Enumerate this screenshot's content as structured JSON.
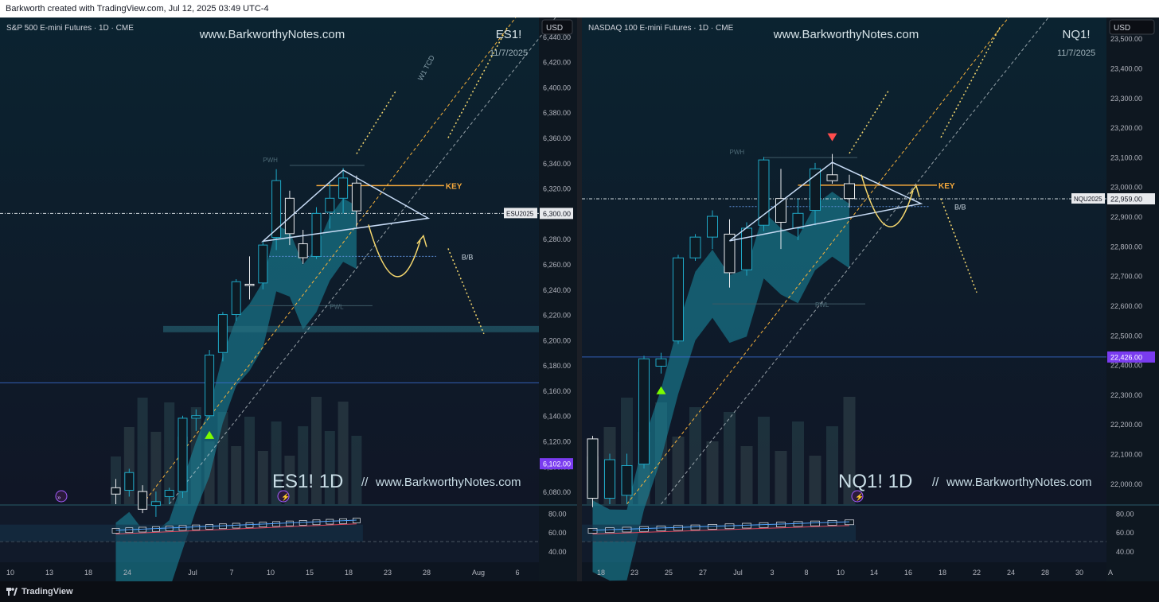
{
  "header": {
    "credit": "Barkworth created with TradingView.com, Jul 12, 2025 03:49 UTC-4"
  },
  "footer": {
    "brand": "TradingView"
  },
  "colors": {
    "accent": "#26c6da",
    "bull": "#1fa8c6",
    "key": "#f6a93b",
    "projection": "#f5d76e",
    "triangle": "#c7dbf5",
    "purple": "#7a3cf0"
  },
  "chart_data": [
    {
      "type": "candlestick",
      "title": "S&P 500 E-mini Futures · 1D · CME",
      "watermark": "www.BarkworthyNotes.com",
      "symbol": "ES1!",
      "date": "11/7/2025",
      "currency": "USD",
      "bottom_watermark_symbol": "ES1! 1D",
      "bottom_watermark_sep": "//",
      "bottom_watermark_url": "www.BarkworthyNotes.com",
      "ylim": [
        6070,
        6455
      ],
      "yticks": [
        6080,
        6100,
        6120,
        6140,
        6160,
        6180,
        6200,
        6220,
        6240,
        6260,
        6280,
        6300,
        6320,
        6340,
        6360,
        6380,
        6400,
        6420,
        6440
      ],
      "ytick_labels": [
        "6,080.00",
        "6,100.00",
        "6,120.00",
        "6,140.00",
        "6,160.00",
        "6,180.00",
        "6,200.00",
        "6,220.00",
        "6,240.00",
        "6,260.00",
        "6,280.00",
        "6,300.00",
        "6,320.00",
        "6,340.00",
        "6,360.00",
        "6,380.00",
        "6,400.00",
        "6,420.00",
        "6,440.00"
      ],
      "xticks": [
        "10",
        "13",
        "18",
        "24",
        "Jul",
        "7",
        "10",
        "15",
        "18",
        "23",
        "28",
        "Aug",
        "6"
      ],
      "price_labels": [
        {
          "label": "ESU2025",
          "value_text": "6,300.00",
          "value": 6300
        },
        {
          "label": "",
          "value_text": "6,102.00",
          "value": 6102
        }
      ],
      "candles": [
        {
          "o": 6083,
          "h": 6090,
          "l": 6070,
          "c": 6078
        },
        {
          "o": 6081,
          "h": 6098,
          "l": 6076,
          "c": 6095
        },
        {
          "o": 6080,
          "h": 6085,
          "l": 6063,
          "c": 6066
        },
        {
          "o": 6069,
          "h": 6080,
          "l": 6060,
          "c": 6072
        },
        {
          "o": 6076,
          "h": 6083,
          "l": 6070,
          "c": 6081
        },
        {
          "o": 6080,
          "h": 6140,
          "l": 6075,
          "c": 6138
        },
        {
          "o": 6138,
          "h": 6145,
          "l": 6128,
          "c": 6140
        },
        {
          "o": 6140,
          "h": 6192,
          "l": 6138,
          "c": 6188
        },
        {
          "o": 6190,
          "h": 6222,
          "l": 6183,
          "c": 6220
        },
        {
          "o": 6220,
          "h": 6248,
          "l": 6215,
          "c": 6246
        },
        {
          "o": 6244,
          "h": 6266,
          "l": 6232,
          "c": 6243
        },
        {
          "o": 6245,
          "h": 6278,
          "l": 6240,
          "c": 6275
        },
        {
          "o": 6281,
          "h": 6335,
          "l": 6271,
          "c": 6326
        },
        {
          "o": 6312,
          "h": 6318,
          "l": 6275,
          "c": 6284
        },
        {
          "o": 6276,
          "h": 6287,
          "l": 6260,
          "c": 6265
        },
        {
          "o": 6266,
          "h": 6305,
          "l": 6264,
          "c": 6300
        },
        {
          "o": 6301,
          "h": 6324,
          "l": 6288,
          "c": 6312
        },
        {
          "o": 6312,
          "h": 6336,
          "l": 6300,
          "c": 6328
        },
        {
          "o": 6324,
          "h": 6330,
          "l": 6289,
          "c": 6302
        }
      ],
      "markers": [
        {
          "candle": 7,
          "type": "up-triangle"
        }
      ],
      "annotations": {
        "pwh": "PWH",
        "pwl": "PWL",
        "key": "KEY",
        "bb": "B/B",
        "channel": "W1 TCD"
      },
      "levels": {
        "key": 6322,
        "pwh": 6338,
        "pwl": 6227,
        "bb": 6266,
        "zone_top": 6211,
        "zone_bottom": 6206,
        "blue_line": 6166
      },
      "oscillator": {
        "yticks_text": [
          "80.00",
          "60.00",
          "40.00"
        ],
        "yticks": [
          80,
          60,
          40
        ],
        "ylim": [
          28,
          88
        ]
      }
    },
    {
      "type": "candlestick",
      "title": "NASDAQ 100 E-mini Futures · 1D · CME",
      "watermark": "www.BarkworthyNotes.com",
      "symbol": "NQ1!",
      "date": "11/7/2025",
      "currency": "USD",
      "bottom_watermark_symbol": "NQ1! 1D",
      "bottom_watermark_sep": "//",
      "bottom_watermark_url": "www.BarkworthyNotes.com",
      "ylim": [
        21930,
        23570
      ],
      "yticks": [
        22000,
        22100,
        22200,
        22300,
        22400,
        22500,
        22600,
        22700,
        22800,
        22900,
        23000,
        23100,
        23200,
        23300,
        23400,
        23500
      ],
      "ytick_labels": [
        "22,000.00",
        "22,100.00",
        "22,200.00",
        "22,300.00",
        "22,400.00",
        "22,500.00",
        "22,600.00",
        "22,700.00",
        "22,800.00",
        "22,900.00",
        "23,000.00",
        "23,100.00",
        "23,200.00",
        "23,300.00",
        "23,400.00",
        "23,500.00"
      ],
      "xticks": [
        "18",
        "23",
        "25",
        "27",
        "Jul",
        "3",
        "8",
        "10",
        "14",
        "16",
        "18",
        "22",
        "24",
        "28",
        "30",
        "A"
      ],
      "price_labels": [
        {
          "label": "NQU2025",
          "value_text": "22,959.00",
          "value": 22959
        },
        {
          "label": "",
          "value_text": "22,426.00",
          "value": 22426
        }
      ],
      "candles": [
        {
          "o": 22150,
          "h": 22160,
          "l": 21920,
          "c": 21950
        },
        {
          "o": 21950,
          "h": 22100,
          "l": 21930,
          "c": 22080
        },
        {
          "o": 21960,
          "h": 22100,
          "l": 21930,
          "c": 22060
        },
        {
          "o": 22065,
          "h": 22430,
          "l": 22050,
          "c": 22420
        },
        {
          "o": 22395,
          "h": 22440,
          "l": 22370,
          "c": 22420
        },
        {
          "o": 22480,
          "h": 22770,
          "l": 22470,
          "c": 22760
        },
        {
          "o": 22760,
          "h": 22840,
          "l": 22750,
          "c": 22830
        },
        {
          "o": 22830,
          "h": 22920,
          "l": 22790,
          "c": 22900
        },
        {
          "o": 22840,
          "h": 22890,
          "l": 22660,
          "c": 22710
        },
        {
          "o": 22720,
          "h": 22880,
          "l": 22700,
          "c": 22860
        },
        {
          "o": 22870,
          "h": 23100,
          "l": 22850,
          "c": 23090
        },
        {
          "o": 22960,
          "h": 23060,
          "l": 22790,
          "c": 22880
        },
        {
          "o": 22860,
          "h": 22960,
          "l": 22820,
          "c": 22910
        },
        {
          "o": 22920,
          "h": 23080,
          "l": 22870,
          "c": 23060
        },
        {
          "o": 23040,
          "h": 23110,
          "l": 23010,
          "c": 23020
        },
        {
          "o": 23010,
          "h": 23040,
          "l": 22930,
          "c": 22960
        }
      ],
      "markers": [
        {
          "candle": 4,
          "type": "up-triangle"
        },
        {
          "candle": 14,
          "type": "down-triangle"
        }
      ],
      "annotations": {
        "pwh": "PWH",
        "pwl": "PWL",
        "key": "KEY",
        "bb": "B/B"
      },
      "levels": {
        "key": 23005,
        "pwh": 23098,
        "pwl": 22605,
        "bb": 22933,
        "zone_top": 22670,
        "zone_bottom": 22655,
        "blue_line": 22426
      },
      "oscillator": {
        "yticks_text": [
          "80.00",
          "60.00",
          "40.00"
        ],
        "yticks": [
          80,
          60,
          40
        ],
        "ylim": [
          28,
          88
        ]
      }
    }
  ]
}
